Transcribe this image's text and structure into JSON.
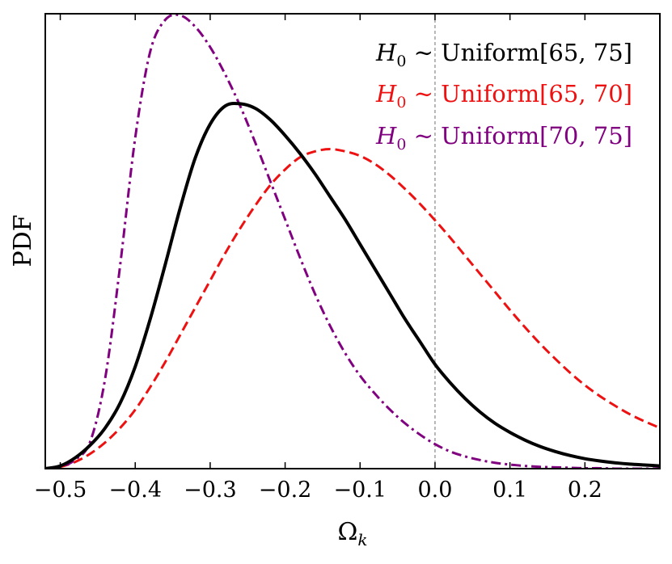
{
  "chart_data": {
    "type": "line",
    "title": "",
    "xlabel": "Ωk",
    "xlabel_main": "Ω",
    "xlabel_sub": "k",
    "ylabel": "PDF",
    "xlim": [
      -0.52,
      0.3
    ],
    "ylim": [
      0,
      1.0
    ],
    "x_ticks": [
      -0.5,
      -0.4,
      -0.3,
      -0.2,
      -0.1,
      0.0,
      0.1,
      0.2
    ],
    "x_tick_labels": [
      "−0.5",
      "−0.4",
      "−0.3",
      "−0.2",
      "−0.1",
      "0.0",
      "0.1",
      "0.2"
    ],
    "y_tick_labels_shown": false,
    "reference_line": {
      "x": 0.0,
      "style": "dashed",
      "color": "#888888"
    },
    "legend_position": "top-right",
    "series": [
      {
        "name": "H0 ~ Uniform[65, 75]",
        "legend": {
          "var": "H",
          "sub": "0",
          "rel": " ∼ Uniform[65, 75]"
        },
        "color": "#000000",
        "style": "solid",
        "x": [
          -0.52,
          -0.5,
          -0.48,
          -0.46,
          -0.44,
          -0.42,
          -0.4,
          -0.38,
          -0.36,
          -0.34,
          -0.32,
          -0.3,
          -0.28,
          -0.26,
          -0.24,
          -0.22,
          -0.2,
          -0.18,
          -0.16,
          -0.14,
          -0.12,
          -0.1,
          -0.08,
          -0.06,
          -0.04,
          -0.02,
          0.0,
          0.02,
          0.04,
          0.06,
          0.08,
          0.1,
          0.12,
          0.14,
          0.16,
          0.18,
          0.2,
          0.22,
          0.24,
          0.26,
          0.28,
          0.3
        ],
        "y": [
          0.0,
          0.006,
          0.024,
          0.052,
          0.09,
          0.145,
          0.225,
          0.33,
          0.45,
          0.575,
          0.685,
          0.76,
          0.8,
          0.805,
          0.795,
          0.77,
          0.735,
          0.695,
          0.65,
          0.6,
          0.55,
          0.495,
          0.44,
          0.385,
          0.33,
          0.28,
          0.23,
          0.19,
          0.155,
          0.125,
          0.1,
          0.08,
          0.063,
          0.049,
          0.038,
          0.029,
          0.022,
          0.017,
          0.013,
          0.01,
          0.008,
          0.006
        ]
      },
      {
        "name": "H0 ~ Uniform[65, 70]",
        "legend": {
          "var": "H",
          "sub": "0",
          "rel": " ∼ Uniform[65, 70]"
        },
        "color": "#ee1111",
        "style": "dashed",
        "x": [
          -0.52,
          -0.5,
          -0.48,
          -0.46,
          -0.44,
          -0.42,
          -0.4,
          -0.38,
          -0.36,
          -0.34,
          -0.32,
          -0.3,
          -0.28,
          -0.26,
          -0.24,
          -0.22,
          -0.2,
          -0.18,
          -0.16,
          -0.14,
          -0.12,
          -0.1,
          -0.08,
          -0.06,
          -0.04,
          -0.02,
          0.0,
          0.02,
          0.04,
          0.06,
          0.08,
          0.1,
          0.12,
          0.14,
          0.16,
          0.18,
          0.2,
          0.22,
          0.24,
          0.26,
          0.28,
          0.3
        ],
        "y": [
          0.0,
          0.004,
          0.015,
          0.033,
          0.058,
          0.09,
          0.13,
          0.18,
          0.235,
          0.295,
          0.355,
          0.415,
          0.475,
          0.53,
          0.58,
          0.625,
          0.66,
          0.687,
          0.7,
          0.705,
          0.7,
          0.69,
          0.672,
          0.647,
          0.617,
          0.584,
          0.548,
          0.51,
          0.47,
          0.43,
          0.39,
          0.35,
          0.312,
          0.276,
          0.243,
          0.212,
          0.184,
          0.16,
          0.139,
          0.12,
          0.104,
          0.09
        ]
      },
      {
        "name": "H0 ~ Uniform[70, 75]",
        "legend": {
          "var": "H",
          "sub": "0",
          "rel": " ∼ Uniform[70, 75]"
        },
        "color": "#800080",
        "style": "dashdot",
        "x": [
          -0.52,
          -0.5,
          -0.48,
          -0.46,
          -0.44,
          -0.42,
          -0.4,
          -0.38,
          -0.36,
          -0.34,
          -0.32,
          -0.3,
          -0.28,
          -0.26,
          -0.24,
          -0.22,
          -0.2,
          -0.18,
          -0.16,
          -0.14,
          -0.12,
          -0.1,
          -0.08,
          -0.06,
          -0.04,
          -0.02,
          0.0,
          0.02,
          0.04,
          0.06,
          0.08,
          0.1,
          0.12,
          0.14,
          0.16,
          0.18,
          0.2,
          0.22,
          0.24,
          0.26,
          0.28,
          0.3
        ],
        "y": [
          0.0,
          0.004,
          0.02,
          0.06,
          0.2,
          0.45,
          0.73,
          0.92,
          0.99,
          1.0,
          0.975,
          0.93,
          0.87,
          0.8,
          0.72,
          0.635,
          0.55,
          0.465,
          0.385,
          0.315,
          0.255,
          0.205,
          0.165,
          0.13,
          0.1,
          0.075,
          0.054,
          0.038,
          0.027,
          0.019,
          0.013,
          0.009,
          0.006,
          0.004,
          0.003,
          0.002,
          0.001,
          0.001,
          0.0,
          0.0,
          0.0,
          0.0
        ]
      }
    ]
  }
}
